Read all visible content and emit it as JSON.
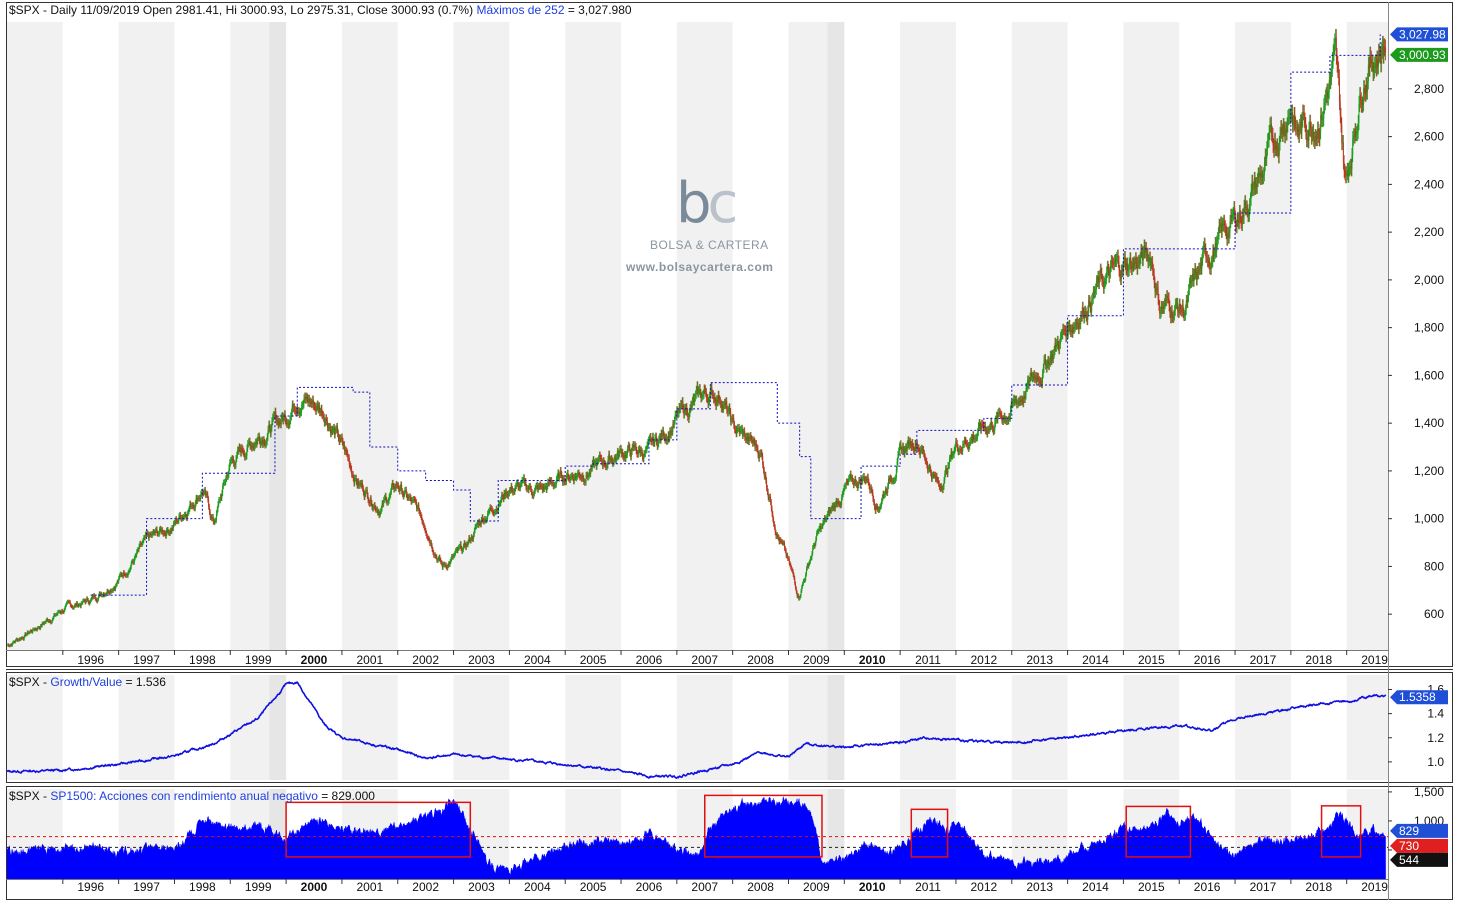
{
  "panels": {
    "price": {
      "legend": "$SPX - Daily 11/09/2019 Open 2981.41, Hi 3000.93, Lo 2975.31, Close 3000.93 (0.7%)",
      "legend_extra": "Máximos de 252",
      "legend_extra_value": "= 3,027.980",
      "price_tags": [
        {
          "text": "3,027.98",
          "color": "#1f4fd6"
        },
        {
          "text": "3,000.93",
          "color": "#1c9a1c"
        }
      ]
    },
    "ratio": {
      "legend": "$SPX - ",
      "legend_extra": "Growth/Value",
      "legend_extra_value": "= 1.536",
      "price_tag": {
        "text": "1.5358",
        "color": "#1f4fd6"
      }
    },
    "breadth": {
      "legend": "$SPX - ",
      "legend_extra": "SP1500: Acciones con rendimiento anual negativo",
      "legend_extra_value": "= 829.000",
      "tags": [
        {
          "text": "829",
          "color": "#1f4fd6"
        },
        {
          "text": "730",
          "color": "#e02020"
        },
        {
          "text": "544",
          "color": "#111111"
        }
      ]
    }
  },
  "watermark": {
    "logo_b": "b",
    "logo_c": "c",
    "name": "BOLSA & CARTERA",
    "url": "www.bolsaycartera.com"
  },
  "colors": {
    "up": "#1c9a1c",
    "down": "#b5381d",
    "line": "#1010e0",
    "fill": "#0000ff",
    "highlight": "#e01010"
  },
  "chart_data": [
    {
      "type": "line",
      "title": "$SPX - Daily",
      "series": [
        {
          "name": "$SPX",
          "x": [
            1995.0,
            1995.5,
            1996.0,
            1996.5,
            1997.0,
            1997.5,
            1998.0,
            1998.5,
            1998.7,
            1999.0,
            1999.5,
            2000.0,
            2000.2,
            2000.7,
            2001.0,
            2001.3,
            2001.7,
            2002.0,
            2002.5,
            2002.8,
            2003.2,
            2003.5,
            2004.0,
            2004.6,
            2005.0,
            2005.5,
            2006.0,
            2006.5,
            2007.0,
            2007.5,
            2007.8,
            2008.0,
            2008.5,
            2008.8,
            2009.18,
            2009.5,
            2010.0,
            2010.4,
            2010.6,
            2011.0,
            2011.3,
            2011.7,
            2012.0,
            2012.5,
            2013.0,
            2013.5,
            2014.0,
            2014.5,
            2015.0,
            2015.5,
            2015.65,
            2016.1,
            2016.5,
            2017.0,
            2017.5,
            2018.0,
            2018.1,
            2018.5,
            2018.8,
            2018.98,
            2019.3,
            2019.5,
            2019.7
          ],
          "y": [
            470,
            540,
            620,
            660,
            750,
            900,
            980,
            1130,
            980,
            1230,
            1350,
            1430,
            1520,
            1450,
            1300,
            1150,
            1050,
            1140,
            980,
            800,
            870,
            1000,
            1130,
            1120,
            1180,
            1210,
            1280,
            1280,
            1420,
            1520,
            1520,
            1380,
            1280,
            950,
            680,
            920,
            1120,
            1180,
            1060,
            1270,
            1340,
            1130,
            1310,
            1380,
            1460,
            1620,
            1800,
            1960,
            2060,
            2100,
            1900,
            1880,
            2100,
            2250,
            2450,
            2750,
            2620,
            2700,
            2900,
            2400,
            2880,
            2950,
            3000
          ]
        },
        {
          "name": "Máximos de 252",
          "x": [
            1996.5,
            1997.5,
            1998.5,
            1999.0,
            1999.8,
            2000.2,
            2000.9,
            2001.2,
            2001.5,
            2002.0,
            2002.5,
            2003.0,
            2003.3,
            2003.8,
            2004.5,
            2005.0,
            2005.5,
            2006.5,
            2007.0,
            2007.6,
            2008.5,
            2008.8,
            2009.2,
            2009.4,
            2010.3,
            2011.0,
            2011.3,
            2012.0,
            2012.5,
            2013.0,
            2014.0,
            2015.0,
            2015.4,
            2016.5,
            2017.0,
            2018.0,
            2018.7,
            2019.0,
            2019.6
          ],
          "y": [
            680,
            1000,
            1190,
            1190,
            1430,
            1550,
            1550,
            1530,
            1300,
            1200,
            1160,
            1120,
            990,
            1160,
            1160,
            1220,
            1230,
            1330,
            1460,
            1570,
            1570,
            1400,
            1260,
            1000,
            1220,
            1270,
            1370,
            1370,
            1420,
            1560,
            1850,
            2130,
            2130,
            2130,
            2280,
            2870,
            2940,
            2940,
            3028
          ]
        }
      ],
      "ylim": [
        450,
        3080
      ],
      "yticks": [
        "600",
        "800",
        "1,000",
        "1,200",
        "1,400",
        "1,600",
        "1,800",
        "2,000",
        "2,200",
        "2,400",
        "2,600",
        "2,800"
      ],
      "xticks": [
        "1996",
        "1997",
        "1998",
        "1999",
        "2000",
        "2001",
        "2002",
        "2003",
        "2004",
        "2005",
        "2006",
        "2007",
        "2008",
        "2009",
        "2010",
        "2011",
        "2012",
        "2013",
        "2014",
        "2015",
        "2016",
        "2017",
        "2018",
        "2019"
      ],
      "bold_xticks": [
        "2000",
        "2010"
      ]
    },
    {
      "type": "line",
      "title": "Growth/Value",
      "series": [
        {
          "name": "Growth/Value",
          "x": [
            1995.0,
            1996.0,
            1997.0,
            1998.0,
            1998.7,
            1999.5,
            2000.0,
            2000.2,
            2000.7,
            2001.0,
            2001.5,
            2002.0,
            2002.5,
            2003.0,
            2004.0,
            2005.0,
            2006.0,
            2006.5,
            2007.0,
            2008.0,
            2008.5,
            2009.0,
            2009.3,
            2010.0,
            2011.0,
            2011.5,
            2012.0,
            2013.0,
            2014.0,
            2015.0,
            2016.0,
            2016.6,
            2017.0,
            2018.0,
            2018.5,
            2019.0,
            2019.5,
            2019.7
          ],
          "y": [
            0.92,
            0.93,
            0.98,
            1.05,
            1.15,
            1.36,
            1.64,
            1.66,
            1.3,
            1.2,
            1.15,
            1.1,
            1.03,
            1.06,
            1.02,
            0.98,
            0.92,
            0.88,
            0.88,
            0.98,
            1.08,
            1.04,
            1.15,
            1.12,
            1.16,
            1.2,
            1.18,
            1.16,
            1.2,
            1.26,
            1.3,
            1.26,
            1.36,
            1.44,
            1.48,
            1.5,
            1.55,
            1.536
          ]
        }
      ],
      "ylim": [
        0.85,
        1.72
      ],
      "yticks": [
        "1.0",
        "1.2",
        "1.4",
        "1.6"
      ]
    },
    {
      "type": "area",
      "title": "SP1500: Acciones con rendimiento anual negativo",
      "series": [
        {
          "name": "SP1500: Acciones con rendimiento anual negativo",
          "x": [
            1995.0,
            1996.0,
            1996.5,
            1997.0,
            1997.5,
            1998.0,
            1998.6,
            1999.0,
            1999.5,
            2000.0,
            2000.5,
            2001.0,
            2001.5,
            2002.0,
            2002.3,
            2002.8,
            2003.0,
            2003.3,
            2003.6,
            2004.0,
            2004.6,
            2005.0,
            2005.5,
            2006.0,
            2006.5,
            2007.0,
            2007.4,
            2007.6,
            2008.0,
            2008.5,
            2008.9,
            2009.2,
            2009.4,
            2009.6,
            2010.0,
            2010.5,
            2010.8,
            2011.3,
            2011.6,
            2011.8,
            2012.0,
            2012.5,
            2013.0,
            2013.5,
            2014.0,
            2014.5,
            2015.0,
            2015.4,
            2015.8,
            2016.0,
            2016.3,
            2016.6,
            2017.0,
            2017.5,
            2018.0,
            2018.4,
            2018.7,
            2018.9,
            2019.2,
            2019.5,
            2019.7
          ],
          "y": [
            480,
            500,
            560,
            450,
            520,
            520,
            1050,
            860,
            920,
            690,
            1050,
            860,
            830,
            880,
            1000,
            1150,
            1380,
            900,
            300,
            150,
            400,
            550,
            650,
            600,
            800,
            550,
            420,
            900,
            1250,
            1300,
            1400,
            1300,
            1150,
            300,
            350,
            600,
            450,
            850,
            1050,
            800,
            1000,
            400,
            350,
            250,
            400,
            600,
            900,
            850,
            1150,
            900,
            1100,
            650,
            420,
            650,
            650,
            800,
            900,
            1150,
            700,
            850,
            829
          ]
        }
      ],
      "ylim": [
        0,
        1550
      ],
      "yticks": [
        "500",
        "1,000",
        "1,500"
      ],
      "reference_lines": [
        {
          "value": 730,
          "color": "red"
        },
        {
          "value": 544,
          "color": "black"
        }
      ]
    }
  ]
}
